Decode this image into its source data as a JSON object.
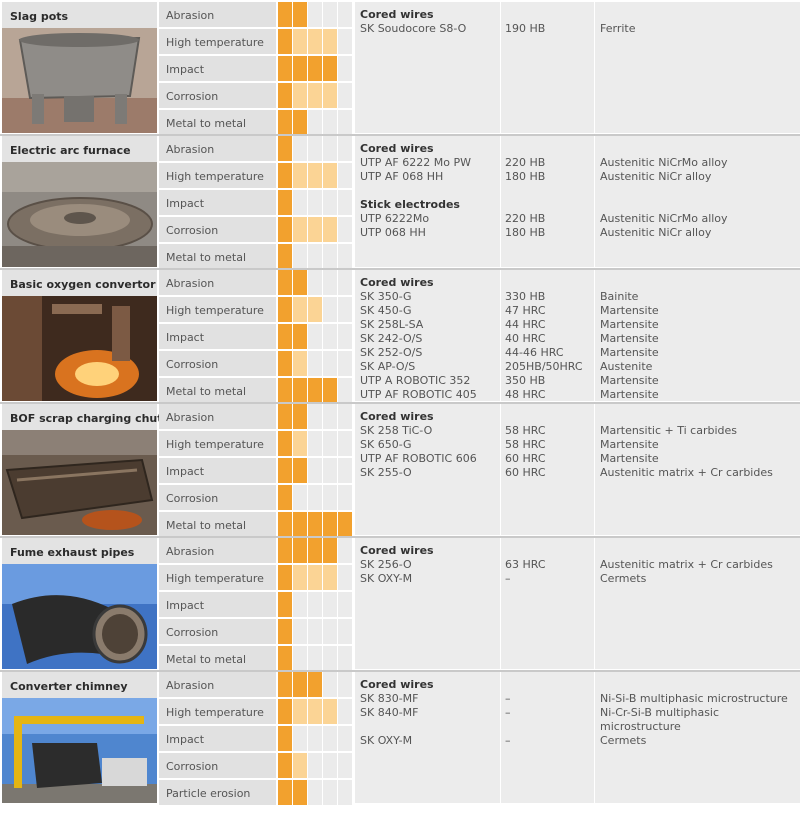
{
  "legend": {
    "full_color": "#f2a12e",
    "light_color": "#fbd495",
    "empty_color": "#ebebeb"
  },
  "sections": [
    {
      "title": "Slag pots",
      "photo": "slag-pot-photo",
      "rows": [
        {
          "label": "Abrasion",
          "rating": 2,
          "max": 5
        },
        {
          "label": "High temperature",
          "rating": 4,
          "max": 5
        },
        {
          "label": "Impact",
          "rating": 4,
          "max": 5
        },
        {
          "label": "Corrosion",
          "rating": 4,
          "max": 5
        },
        {
          "label": "Metal to metal",
          "rating": 2,
          "max": 5
        }
      ],
      "products": [
        {
          "text": "Cored wires",
          "hardness": "",
          "structure": "",
          "heading": true
        },
        {
          "text": "SK Soudocore S8-O",
          "hardness": "190 HB",
          "structure": "Ferrite"
        }
      ]
    },
    {
      "title": "Electric arc furnace",
      "photo": "electric-arc-furnace-photo",
      "rows": [
        {
          "label": "Abrasion",
          "rating": 1,
          "max": 5
        },
        {
          "label": "High temperature",
          "rating": 4,
          "max": 5
        },
        {
          "label": "Impact",
          "rating": 1,
          "max": 5
        },
        {
          "label": "Corrosion",
          "rating": 4,
          "max": 5
        },
        {
          "label": "Metal to metal",
          "rating": 1,
          "max": 5
        }
      ],
      "products": [
        {
          "text": "Cored wires",
          "hardness": "",
          "structure": "",
          "heading": true
        },
        {
          "text": "UTP AF 6222 Mo PW",
          "hardness": "220 HB",
          "structure": "Austenitic NiCrMo alloy"
        },
        {
          "text": "UTP AF 068 HH",
          "hardness": "180 HB",
          "structure": "Austenitic NiCr alloy"
        },
        {
          "text": "",
          "hardness": "",
          "structure": ""
        },
        {
          "text": "Stick electrodes",
          "hardness": "",
          "structure": "",
          "heading": true
        },
        {
          "text": "UTP 6222Mo",
          "hardness": "220 HB",
          "structure": "Austenitic NiCrMo alloy"
        },
        {
          "text": "UTP 068 HH",
          "hardness": "180 HB",
          "structure": "Austenitic NiCr alloy"
        }
      ]
    },
    {
      "title": "Basic oxygen convertor",
      "photo": "basic-oxygen-convertor-photo",
      "rows": [
        {
          "label": "Abrasion",
          "rating": 2,
          "max": 5
        },
        {
          "label": "High temperature",
          "rating": 3,
          "max": 5
        },
        {
          "label": "Impact",
          "rating": 2,
          "max": 5
        },
        {
          "label": "Corrosion",
          "rating": 2,
          "max": 5
        },
        {
          "label": "Metal to metal",
          "rating": 4,
          "max": 5
        }
      ],
      "products": [
        {
          "text": "Cored wires",
          "hardness": "",
          "structure": "",
          "heading": true
        },
        {
          "text": "SK 350-G",
          "hardness": "330 HB",
          "structure": "Bainite"
        },
        {
          "text": "SK 450-G",
          "hardness": "47 HRC",
          "structure": "Martensite"
        },
        {
          "text": "SK 258L-SA",
          "hardness": "44 HRC",
          "structure": "Martensite"
        },
        {
          "text": "SK 242-O/S",
          "hardness": "40 HRC",
          "structure": "Martensite"
        },
        {
          "text": "SK 252-O/S",
          "hardness": "44-46 HRC",
          "structure": "Martensite"
        },
        {
          "text": "SK AP-O/S",
          "hardness": "205HB/50HRC",
          "structure": "Austenite"
        },
        {
          "text": "UTP A ROBOTIC 352",
          "hardness": "350 HB",
          "structure": "Martensite"
        },
        {
          "text": "UTP AF ROBOTIC 405",
          "hardness": "48 HRC",
          "structure": "Martensite"
        }
      ]
    },
    {
      "title": "BOF scrap charging chute",
      "photo": "bof-scrap-charging-chute-photo",
      "rows": [
        {
          "label": "Abrasion",
          "rating": 2,
          "max": 5
        },
        {
          "label": "High temperature",
          "rating": 2,
          "max": 5
        },
        {
          "label": "Impact",
          "rating": 2,
          "max": 5
        },
        {
          "label": "Corrosion",
          "rating": 1,
          "max": 5
        },
        {
          "label": "Metal to metal",
          "rating": 5,
          "max": 5
        }
      ],
      "products": [
        {
          "text": "Cored wires",
          "hardness": "",
          "structure": "",
          "heading": true
        },
        {
          "text": "SK 258 TiC-O",
          "hardness": "58 HRC",
          "structure": "Martensitic + Ti carbides"
        },
        {
          "text": "SK 650-G",
          "hardness": "58 HRC",
          "structure": "Martensite"
        },
        {
          "text": "UTP AF ROBOTIC 606",
          "hardness": "60 HRC",
          "structure": "Martensite"
        },
        {
          "text": "SK 255-O",
          "hardness": "60 HRC",
          "structure": "Austenitic matrix + Cr carbides"
        }
      ]
    },
    {
      "title": "Fume exhaust pipes",
      "photo": "fume-exhaust-pipes-photo",
      "rows": [
        {
          "label": "Abrasion",
          "rating": 4,
          "max": 5
        },
        {
          "label": "High temperature",
          "rating": 4,
          "max": 5
        },
        {
          "label": "Impact",
          "rating": 1,
          "max": 5
        },
        {
          "label": "Corrosion",
          "rating": 1,
          "max": 5
        },
        {
          "label": "Metal to metal",
          "rating": 1,
          "max": 5
        }
      ],
      "products": [
        {
          "text": "Cored wires",
          "hardness": "",
          "structure": "",
          "heading": true
        },
        {
          "text": "SK 256-O",
          "hardness": "63 HRC",
          "structure": "Austenitic matrix + Cr carbides"
        },
        {
          "text": "SK OXY-M",
          "hardness": "–",
          "structure": "Cermets"
        }
      ]
    },
    {
      "title": "Converter chimney",
      "photo": "converter-chimney-photo",
      "rows": [
        {
          "label": "Abrasion",
          "rating": 3,
          "max": 5
        },
        {
          "label": "High temperature",
          "rating": 4,
          "max": 5
        },
        {
          "label": "Impact",
          "rating": 1,
          "max": 5
        },
        {
          "label": "Corrosion",
          "rating": 2,
          "max": 5
        },
        {
          "label": "Particle erosion",
          "rating": 2,
          "max": 5
        }
      ],
      "products": [
        {
          "text": "Cored wires",
          "hardness": "",
          "structure": "",
          "heading": true
        },
        {
          "text": "SK 830-MF",
          "hardness": "–",
          "structure": "Ni-Si-B multiphasic microstructure"
        },
        {
          "text": "SK 840-MF",
          "hardness": "–",
          "structure": "Ni-Cr-Si-B multiphasic"
        },
        {
          "text": "",
          "hardness": "",
          "structure": "microstructure"
        },
        {
          "text": "SK OXY-M",
          "hardness": "–",
          "structure": "Cermets"
        }
      ]
    }
  ]
}
